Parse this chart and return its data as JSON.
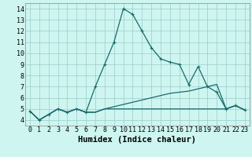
{
  "title": "",
  "xlabel": "Humidex (Indice chaleur)",
  "ylabel": "",
  "bg_color": "#cef5f0",
  "grid_color": "#99cccc",
  "line_color": "#1a6b6b",
  "x_values": [
    0,
    1,
    2,
    3,
    4,
    5,
    6,
    7,
    8,
    9,
    10,
    11,
    12,
    13,
    14,
    15,
    16,
    17,
    18,
    19,
    20,
    21,
    22,
    23
  ],
  "line1_y": [
    4.8,
    4.0,
    4.5,
    5.0,
    4.7,
    5.0,
    4.7,
    7.0,
    9.0,
    11.0,
    14.0,
    13.5,
    12.0,
    10.5,
    9.5,
    9.2,
    9.0,
    7.2,
    8.8,
    7.0,
    6.5,
    5.0,
    5.3,
    4.9
  ],
  "line2_y": [
    4.8,
    4.0,
    4.5,
    5.0,
    4.7,
    5.0,
    4.7,
    4.7,
    5.0,
    5.2,
    5.4,
    5.6,
    5.8,
    6.0,
    6.2,
    6.4,
    6.5,
    6.6,
    6.8,
    7.0,
    7.2,
    5.0,
    5.3,
    4.9
  ],
  "line3_y": [
    4.8,
    4.0,
    4.5,
    5.0,
    4.7,
    5.0,
    4.7,
    4.7,
    5.0,
    5.0,
    5.0,
    5.0,
    5.0,
    5.0,
    5.0,
    5.0,
    5.0,
    5.0,
    5.0,
    5.0,
    5.0,
    5.0,
    5.3,
    4.9
  ],
  "xlim": [
    -0.5,
    23.5
  ],
  "ylim": [
    3.5,
    14.5
  ],
  "yticks": [
    4,
    5,
    6,
    7,
    8,
    9,
    10,
    11,
    12,
    13,
    14
  ],
  "xticks": [
    0,
    1,
    2,
    3,
    4,
    5,
    6,
    7,
    8,
    9,
    10,
    11,
    12,
    13,
    14,
    15,
    16,
    17,
    18,
    19,
    20,
    21,
    22,
    23
  ],
  "tick_fontsize": 6,
  "label_fontsize": 7.5
}
